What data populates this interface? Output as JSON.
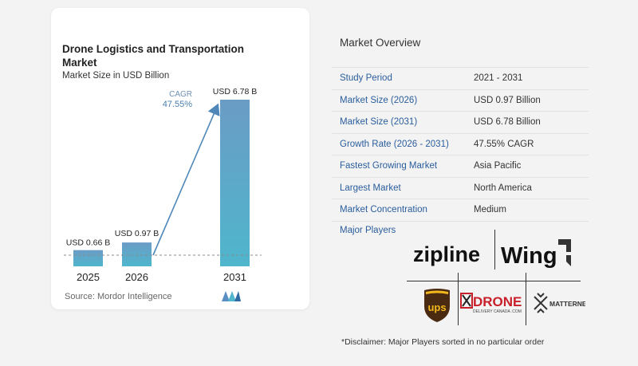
{
  "chart_data": {
    "type": "bar",
    "title": "Drone Logistics and Transportation Market",
    "subtitle": "Market Size in USD Billion",
    "categories": [
      "2025",
      "2026",
      "2031"
    ],
    "values": [
      0.66,
      0.97,
      6.78
    ],
    "value_labels": [
      "USD 0.66 B",
      "USD 0.97 B",
      "USD 6.78 B"
    ],
    "cagr_label": "CAGR",
    "cagr_value": "47.55%",
    "ylim": [
      0,
      7
    ],
    "xlabel": "",
    "ylabel": "",
    "grid": false,
    "colors": {
      "bar_top": "#6a9cc6",
      "bar_bottom": "#4fb6cc",
      "arrow": "#4f87b8",
      "label": "#1f1f1f"
    }
  },
  "source": "Source:  Mordor Intelligence",
  "source_logo_icon": "mordor-intelligence-logo-icon",
  "overview": {
    "title": "Market Overview",
    "rows": [
      {
        "label": "Study Period",
        "value": "2021 - 2031"
      },
      {
        "label": "Market Size (2026)",
        "value": "USD 0.97 Billion"
      },
      {
        "label": "Market Size (2031)",
        "value": "USD 6.78 Billion"
      },
      {
        "label": "Growth Rate (2026 - 2031)",
        "value": "47.55% CAGR"
      },
      {
        "label": "Fastest Growing Market",
        "value": "Asia Pacific"
      },
      {
        "label": "Largest Market",
        "value": "North America"
      },
      {
        "label": "Market Concentration",
        "value": "Medium"
      }
    ]
  },
  "players": {
    "label": "Major Players",
    "logos": {
      "zipline": "zipline",
      "wing": "Wing",
      "ups": "ups",
      "drone": "DRONE",
      "drone_sub": "DELIVERY CANADA .COM",
      "matternet": "MATTERNET"
    }
  },
  "disclaimer": "*Disclaimer: Major Players sorted in no particular order"
}
